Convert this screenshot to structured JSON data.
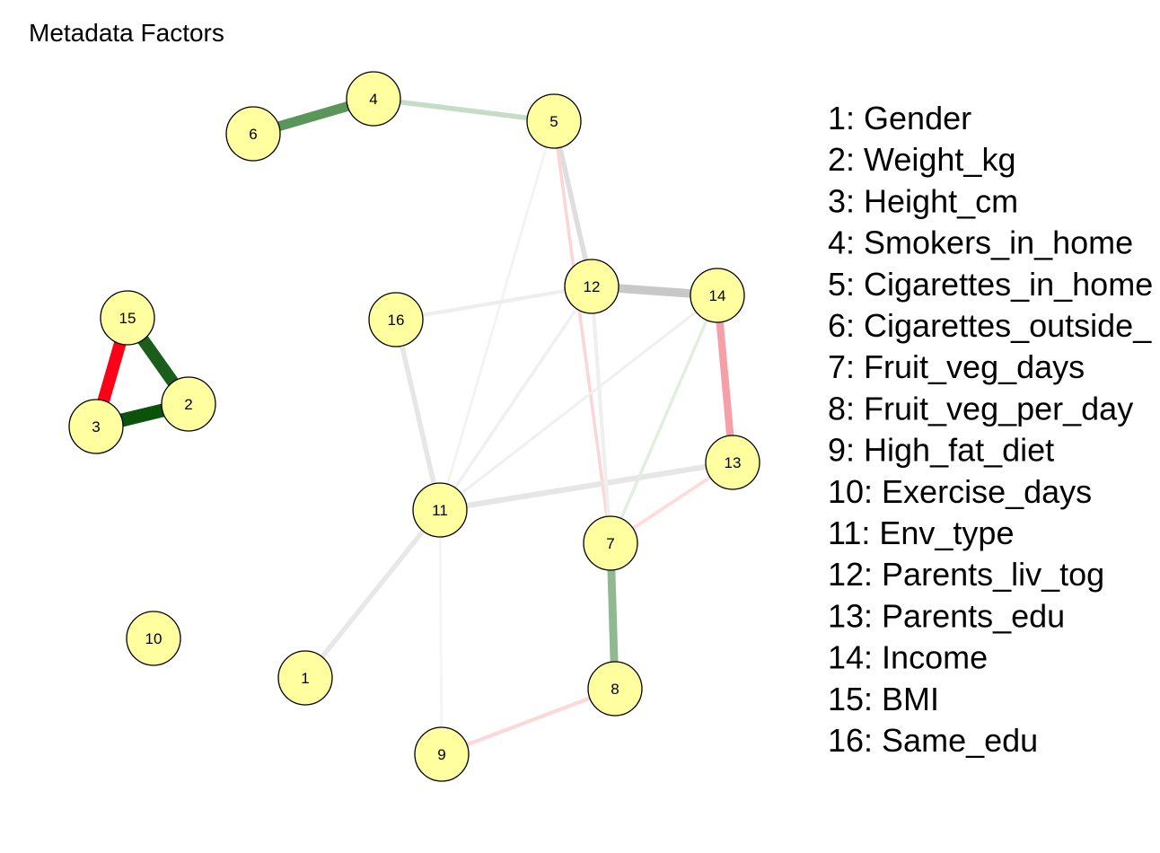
{
  "title": "Metadata Factors",
  "nodes": [
    {
      "id": 1,
      "label": "1"
    },
    {
      "id": 2,
      "label": "2"
    },
    {
      "id": 3,
      "label": "3"
    },
    {
      "id": 4,
      "label": "4"
    },
    {
      "id": 5,
      "label": "5"
    },
    {
      "id": 6,
      "label": "6"
    },
    {
      "id": 7,
      "label": "7"
    },
    {
      "id": 8,
      "label": "8"
    },
    {
      "id": 9,
      "label": "9"
    },
    {
      "id": 10,
      "label": "10"
    },
    {
      "id": 11,
      "label": "11"
    },
    {
      "id": 12,
      "label": "12"
    },
    {
      "id": 13,
      "label": "13"
    },
    {
      "id": 14,
      "label": "14"
    },
    {
      "id": 15,
      "label": "15"
    },
    {
      "id": 16,
      "label": "16"
    }
  ],
  "edges": [
    {
      "from": 6,
      "to": 4,
      "color": "#5a965a",
      "strength": 0.7
    },
    {
      "from": 4,
      "to": 5,
      "color": "#c5dcc5",
      "strength": 0.3
    },
    {
      "from": 15,
      "to": 3,
      "color": "#ff0019",
      "strength": 0.9
    },
    {
      "from": 15,
      "to": 2,
      "color": "#1b5e1b",
      "strength": 0.9
    },
    {
      "from": 3,
      "to": 2,
      "color": "#0b520b",
      "strength": 1.0
    },
    {
      "from": 12,
      "to": 14,
      "color": "#c8c8c8",
      "strength": 0.6
    },
    {
      "from": 14,
      "to": 13,
      "color": "#f5a0a8",
      "strength": 0.5
    },
    {
      "from": 7,
      "to": 8,
      "color": "#8fba8f",
      "strength": 0.55
    },
    {
      "from": 5,
      "to": 12,
      "color": "#dedede",
      "strength": 0.3
    },
    {
      "from": 5,
      "to": 7,
      "color": "#fcd5d8",
      "strength": 0.15
    },
    {
      "from": 5,
      "to": 11,
      "color": "#f3f3f3",
      "strength": 0.1
    },
    {
      "from": 16,
      "to": 12,
      "color": "#eeeeee",
      "strength": 0.2
    },
    {
      "from": 16,
      "to": 11,
      "color": "#e6e6e6",
      "strength": 0.3
    },
    {
      "from": 11,
      "to": 13,
      "color": "#e6e6e6",
      "strength": 0.35
    },
    {
      "from": 11,
      "to": 12,
      "color": "#f0f0f0",
      "strength": 0.15
    },
    {
      "from": 11,
      "to": 14,
      "color": "#f0f0f0",
      "strength": 0.12
    },
    {
      "from": 11,
      "to": 1,
      "color": "#e8e8e8",
      "strength": 0.3
    },
    {
      "from": 11,
      "to": 9,
      "color": "#f5f5f5",
      "strength": 0.1
    },
    {
      "from": 12,
      "to": 7,
      "color": "#efefef",
      "strength": 0.2
    },
    {
      "from": 14,
      "to": 7,
      "color": "#e0efe0",
      "strength": 0.15
    },
    {
      "from": 13,
      "to": 7,
      "color": "#fcdcdc",
      "strength": 0.18
    },
    {
      "from": 9,
      "to": 8,
      "color": "#fcd8da",
      "strength": 0.2
    }
  ],
  "node_style": {
    "fill": "#ffffa0",
    "stroke": "#000000"
  },
  "legend": [
    "1: Gender",
    "2: Weight_kg",
    "3: Height_cm",
    "4: Smokers_in_home",
    "5: Cigarettes_in_home",
    "6: Cigarettes_outside_",
    "7: Fruit_veg_days",
    "8: Fruit_veg_per_day",
    "9: High_fat_diet",
    "10: Exercise_days",
    "11: Env_type",
    "12: Parents_liv_tog",
    "13: Parents_edu",
    "14: Income",
    "15: BMI",
    "16: Same_edu"
  ]
}
